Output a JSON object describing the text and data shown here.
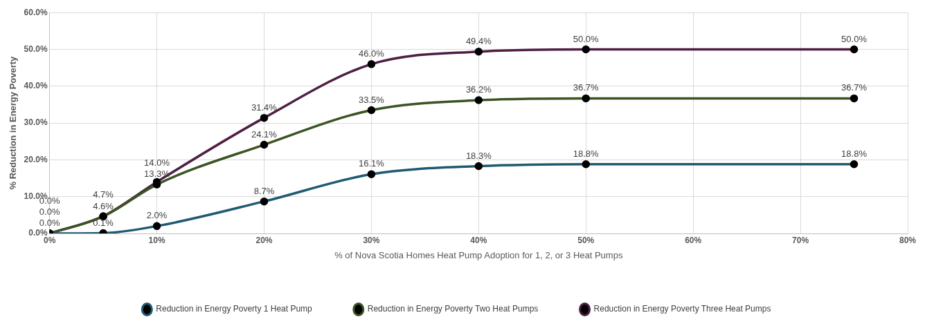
{
  "chart_data": {
    "type": "line",
    "xlabel": "% of Nova Scotia Homes Heat Pump Adoption for 1, 2, or 3 Heat Pumps",
    "ylabel": "% Reduction in Energy Poverty",
    "x": [
      0,
      5,
      10,
      20,
      30,
      40,
      50,
      75
    ],
    "series": [
      {
        "name": "Reduction in Energy Poverty 1 Heat Pump",
        "color": "#1f5a72",
        "values": [
          0.0,
          0.1,
          2.0,
          8.7,
          16.1,
          18.3,
          18.8,
          18.8
        ],
        "value_labels": [
          "0.0%",
          "0.1%",
          "2.0%",
          "8.7%",
          "16.1%",
          "18.3%",
          "18.8%",
          "18.8%"
        ]
      },
      {
        "name": "Reduction in Energy Poverty Two Heat Pumps",
        "color": "#3a5422",
        "values": [
          0.0,
          4.6,
          13.3,
          24.1,
          33.5,
          36.2,
          36.7,
          36.7
        ],
        "value_labels": [
          "0.0%",
          "4.6%",
          "13.3%",
          "24.1%",
          "33.5%",
          "36.2%",
          "36.7%",
          "36.7%"
        ]
      },
      {
        "name": "Reduction in Energy Poverty Three Heat Pumps",
        "color": "#4e1f43",
        "values": [
          0.0,
          4.7,
          14.0,
          31.4,
          46.0,
          49.4,
          50.0,
          50.0
        ],
        "value_labels": [
          "0.0%",
          "4.7%",
          "14.0%",
          "31.4%",
          "46.0%",
          "49.4%",
          "50.0%",
          "50.0%"
        ]
      }
    ],
    "xlim": [
      0,
      80
    ],
    "xticks": [
      {
        "value": 0,
        "label": "0%"
      },
      {
        "value": 10,
        "label": "10%"
      },
      {
        "value": 20,
        "label": "20%"
      },
      {
        "value": 30,
        "label": "30%"
      },
      {
        "value": 40,
        "label": "40%"
      },
      {
        "value": 50,
        "label": "50%"
      },
      {
        "value": 60,
        "label": "60%"
      },
      {
        "value": 70,
        "label": "70%"
      },
      {
        "value": 80,
        "label": "80%"
      }
    ],
    "ylim": [
      0,
      60
    ],
    "yticks": [
      {
        "value": 0,
        "label": "0.0%"
      },
      {
        "value": 10,
        "label": "10.0%"
      },
      {
        "value": 20,
        "label": "20.0%"
      },
      {
        "value": 30,
        "label": "30.0%"
      },
      {
        "value": 40,
        "label": "40.0%"
      },
      {
        "value": 50,
        "label": "50.0%"
      },
      {
        "value": 60,
        "label": "60.0%"
      }
    ],
    "grid": true,
    "legend": "bottom",
    "marker": "circle",
    "line_style": "solid"
  }
}
